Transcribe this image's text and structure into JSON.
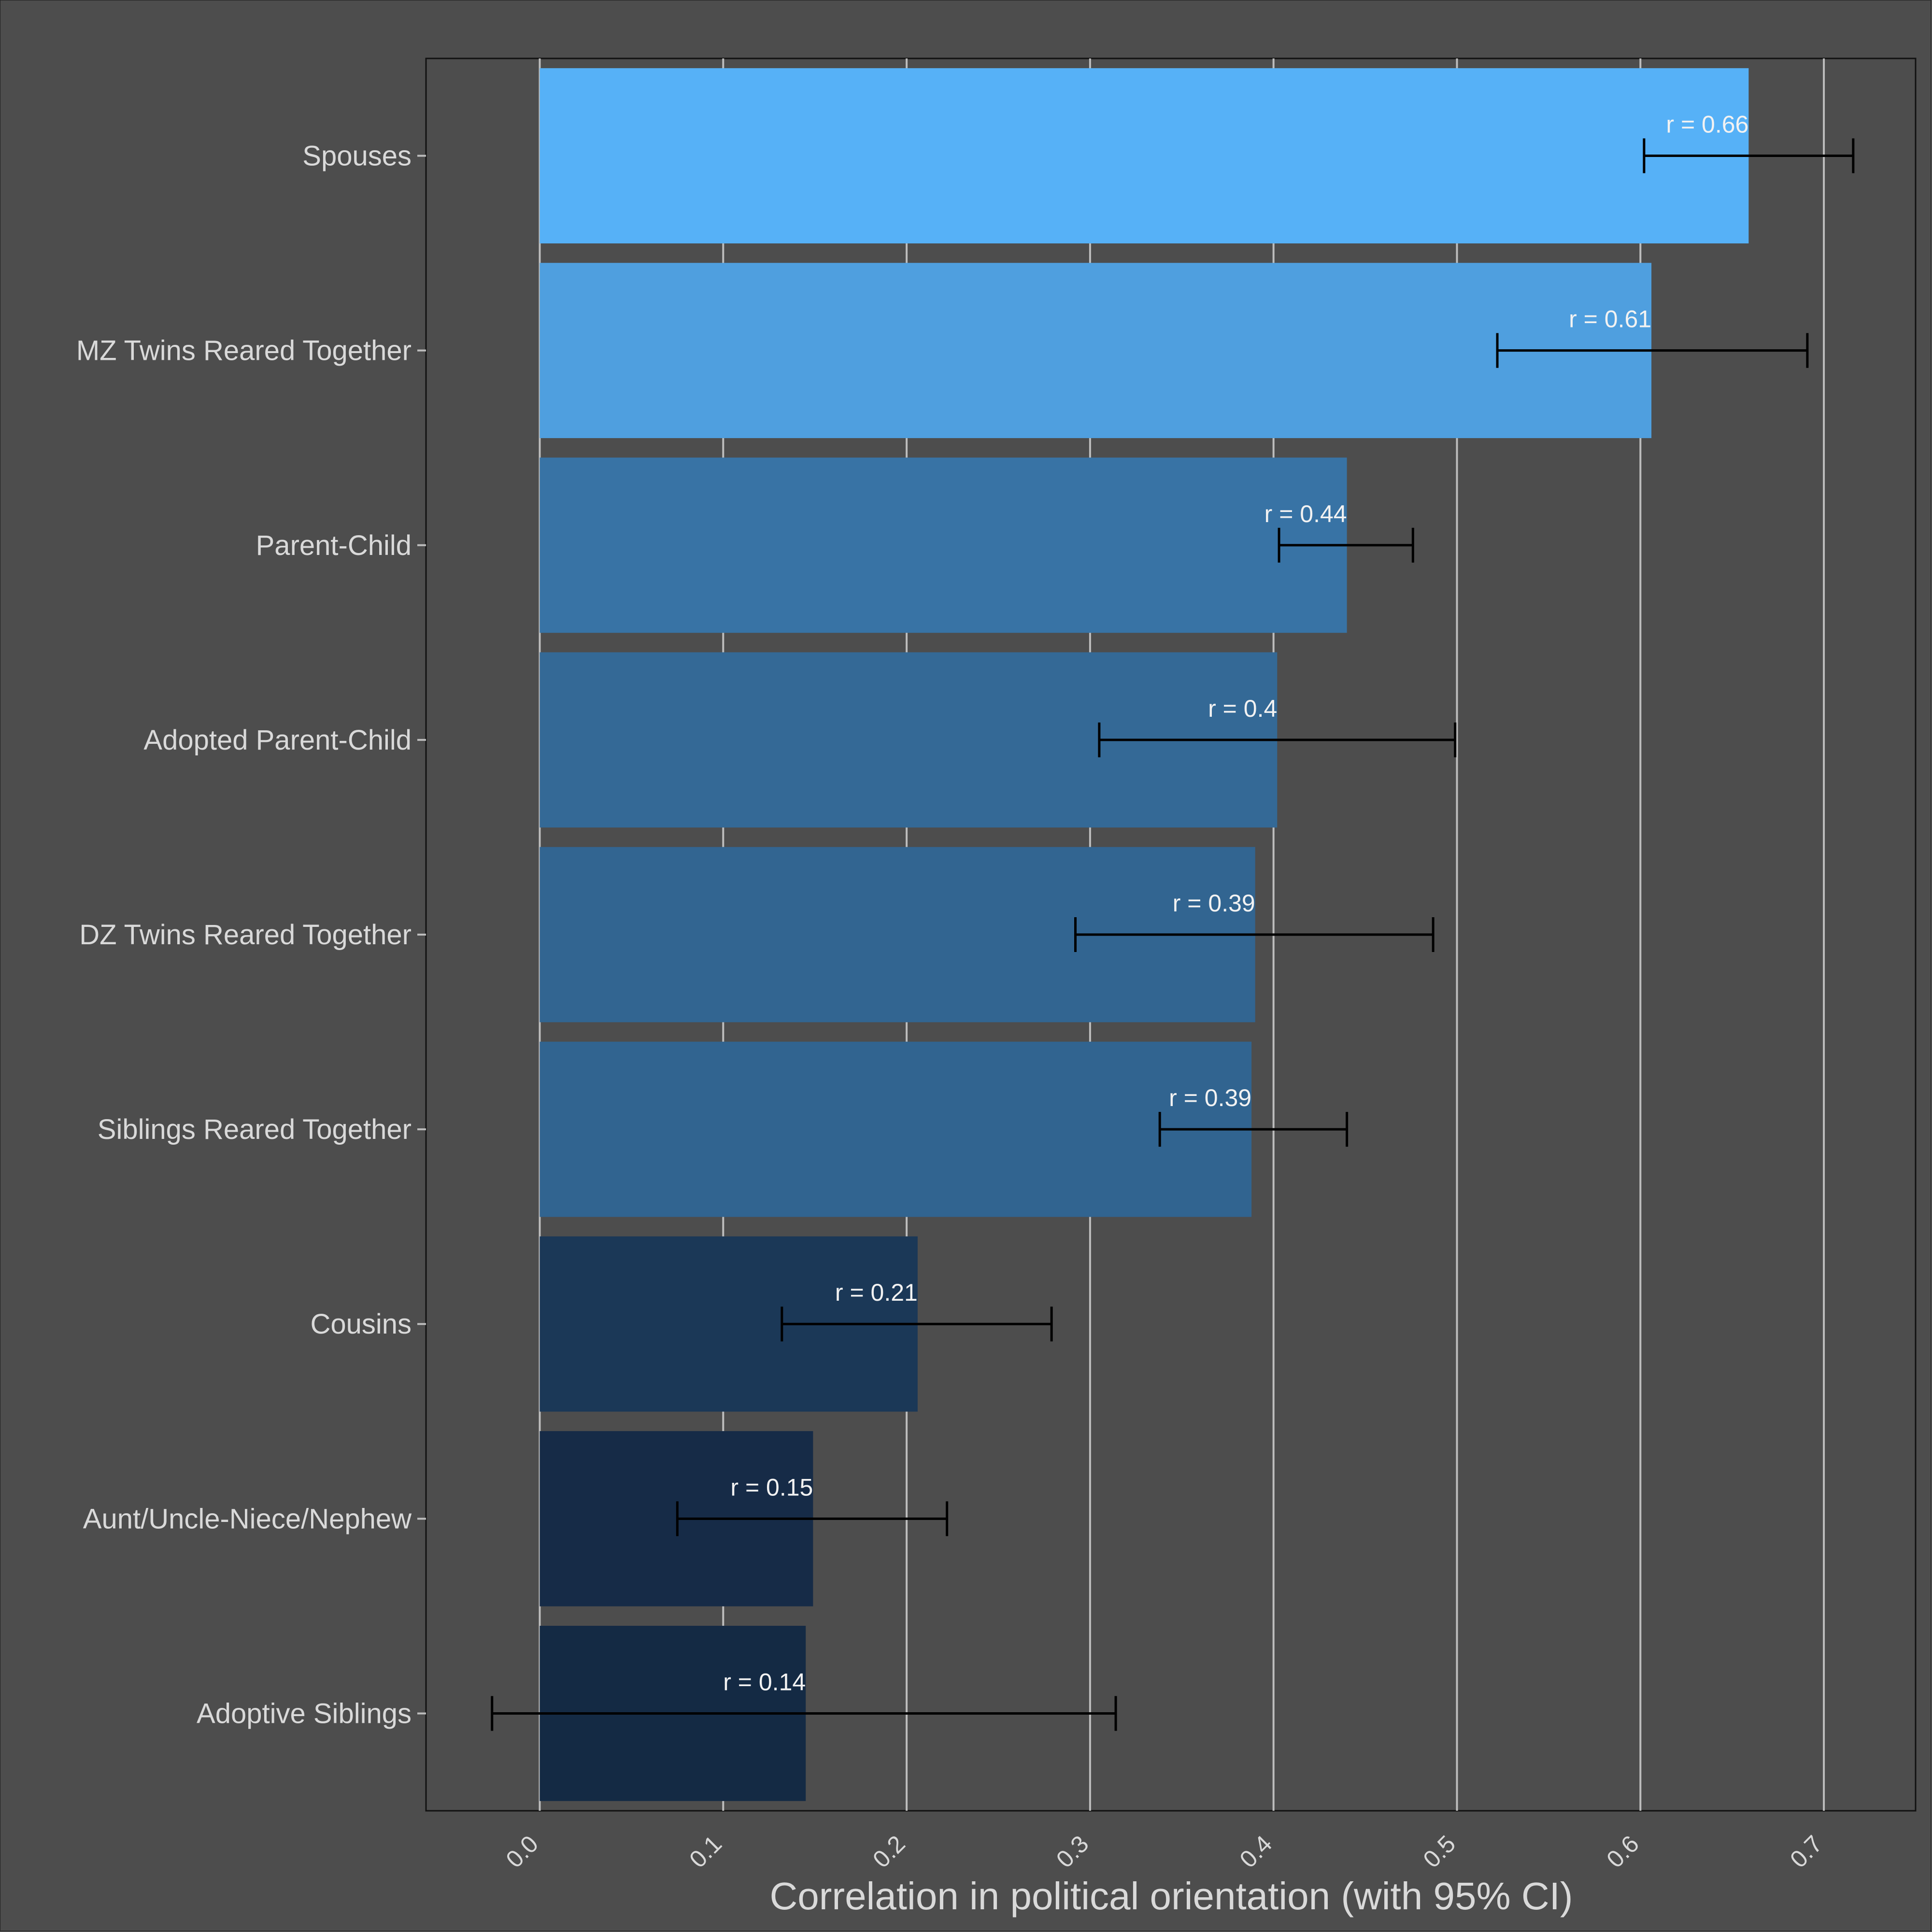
{
  "chart_data": {
    "type": "bar",
    "orientation": "horizontal",
    "title": "",
    "xlabel": "Correlation in political orientation (with 95% CI)",
    "ylabel": "",
    "xlim": [
      -0.062,
      0.75
    ],
    "xticks": [
      0.0,
      0.1,
      0.2,
      0.3,
      0.4,
      0.5,
      0.6,
      0.7
    ],
    "xtick_labels": [
      "0.0",
      "0.1",
      "0.2",
      "0.3",
      "0.4",
      "0.5",
      "0.6",
      "0.7"
    ],
    "grid": true,
    "categories": [
      "Spouses",
      "MZ Twins Reared Together",
      "Parent-Child",
      "Adopted Parent-Child",
      "DZ Twins Reared Together",
      "Siblings Reared Together",
      "Cousins",
      "Aunt/Uncle-Niece/Nephew",
      "Adoptive Siblings"
    ],
    "values": [
      0.659,
      0.606,
      0.44,
      0.402,
      0.39,
      0.388,
      0.206,
      0.149,
      0.145
    ],
    "ci_low": [
      0.602,
      0.522,
      0.403,
      0.305,
      0.292,
      0.338,
      0.132,
      0.075,
      -0.026
    ],
    "ci_high": [
      0.716,
      0.691,
      0.476,
      0.499,
      0.487,
      0.44,
      0.279,
      0.222,
      0.314
    ],
    "labels": [
      "r = 0.66",
      "r = 0.61",
      "r = 0.44",
      "r = 0.4",
      "r = 0.39",
      "r = 0.39",
      "r = 0.21",
      "r = 0.15",
      "r = 0.14"
    ],
    "colors": [
      "#56b1f7",
      "#4f9fdf",
      "#3873a5",
      "#346996",
      "#326591",
      "#316490",
      "#1b3857",
      "#162b47",
      "#142a44"
    ]
  }
}
